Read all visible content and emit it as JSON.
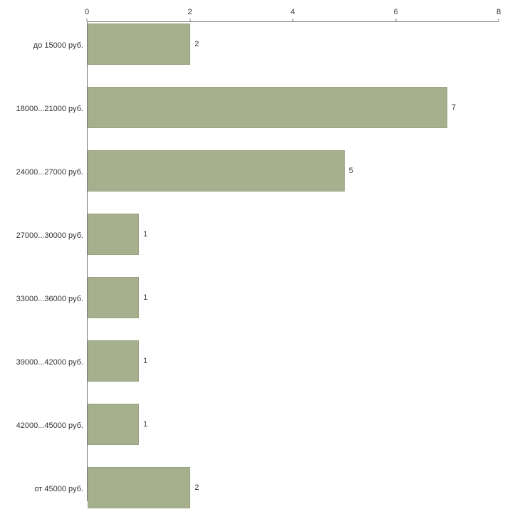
{
  "chart_data": {
    "type": "bar",
    "orientation": "horizontal",
    "title": "",
    "xlabel": "",
    "ylabel": "",
    "categories": [
      "до 15000 руб.",
      "18000...21000 руб.",
      "24000...27000 руб.",
      "27000...30000 руб.",
      "33000...36000 руб.",
      "39000...42000 руб.",
      "42000...45000 руб.",
      "от 45000 руб."
    ],
    "values": [
      2,
      7,
      5,
      1,
      1,
      1,
      1,
      2
    ],
    "value_labels": [
      "2",
      "7",
      "5",
      "1",
      "1",
      "1",
      "1",
      "2"
    ],
    "xlim": [
      0,
      8
    ],
    "xticks": [
      0,
      2,
      4,
      6,
      8
    ],
    "grid": "off",
    "legend": "none",
    "bar_color": "#a7b08e",
    "bar_border_color": "#99a37f",
    "axis_color": "#808080"
  }
}
